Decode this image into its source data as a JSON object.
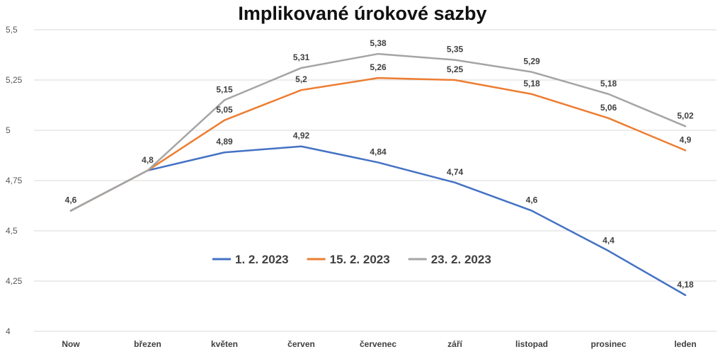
{
  "chart_data": {
    "type": "line",
    "title": "Implikované úrokové sazby",
    "categories": [
      "Now",
      "březen",
      "květen",
      "červen",
      "červenec",
      "září",
      "listopad",
      "prosinec",
      "leden"
    ],
    "ylim": [
      4,
      5.5
    ],
    "yticks": [
      "4",
      "4,25",
      "4,5",
      "4,75",
      "5",
      "5,25",
      "5,5"
    ],
    "ytick_values": [
      4,
      4.25,
      4.5,
      4.75,
      5,
      5.25,
      5.5
    ],
    "grid": true,
    "legend_position": "inside-bottom-center",
    "series": [
      {
        "name": "1. 2. 2023",
        "color": "#4472C4",
        "values": [
          4.6,
          4.8,
          4.89,
          4.92,
          4.84,
          4.74,
          4.6,
          4.4,
          4.18
        ],
        "labels": [
          "",
          "",
          "4,89",
          "4,92",
          "4,84",
          "4,74",
          "4,6",
          "4,4",
          "4,18"
        ]
      },
      {
        "name": "15. 2. 2023",
        "color": "#ED7D31",
        "values": [
          4.6,
          4.8,
          5.05,
          5.2,
          5.26,
          5.25,
          5.18,
          5.06,
          4.9
        ],
        "labels": [
          "",
          "",
          "5,05",
          "5,2",
          "5,26",
          "5,25",
          "5,18",
          "5,06",
          "4,9"
        ]
      },
      {
        "name": "23. 2. 2023",
        "color": "#A5A5A5",
        "values": [
          4.6,
          4.8,
          5.15,
          5.31,
          5.38,
          5.35,
          5.29,
          5.18,
          5.02
        ],
        "labels": [
          "4,6",
          "4,8",
          "5,15",
          "5,31",
          "5,38",
          "5,35",
          "5,29",
          "5,18",
          "5,02"
        ]
      }
    ]
  }
}
